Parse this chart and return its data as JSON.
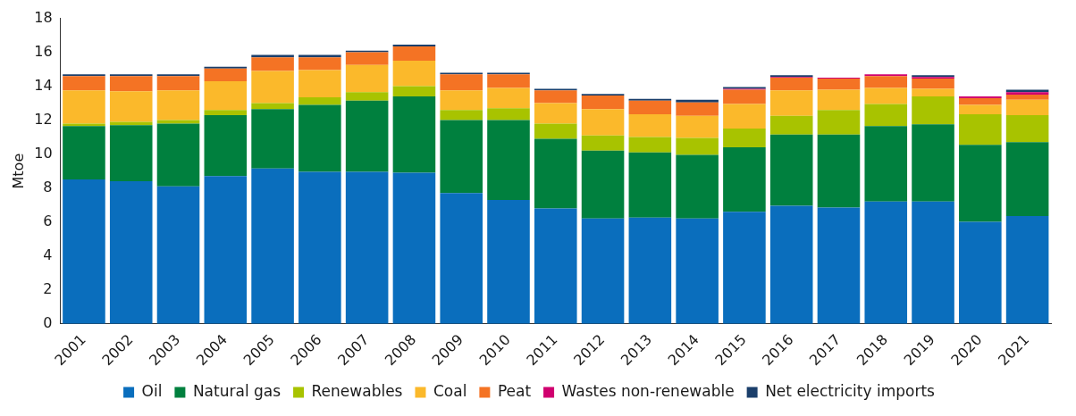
{
  "chart_data": {
    "type": "bar",
    "stacked": true,
    "ylabel": "Mtoe",
    "categories": [
      "2001",
      "2002",
      "2003",
      "2004",
      "2005",
      "2006",
      "2007",
      "2008",
      "2009",
      "2010",
      "2011",
      "2012",
      "2013",
      "2014",
      "2015",
      "2016",
      "2017",
      "2018",
      "2019",
      "2020",
      "2021"
    ],
    "series": [
      {
        "name": "Oil",
        "color": "#0a6ebd",
        "values": [
          8.5,
          8.4,
          8.1,
          8.7,
          9.15,
          8.95,
          8.95,
          8.9,
          7.7,
          7.3,
          6.8,
          6.2,
          6.25,
          6.2,
          6.6,
          6.95,
          6.85,
          7.2,
          7.2,
          6.0,
          6.35
        ]
      },
      {
        "name": "Natural gas",
        "color": "#00803e",
        "values": [
          3.15,
          3.3,
          3.7,
          3.6,
          3.5,
          3.95,
          4.2,
          4.5,
          4.3,
          4.7,
          4.1,
          4.0,
          3.85,
          3.75,
          3.8,
          4.2,
          4.3,
          4.45,
          4.55,
          4.55,
          4.35
        ]
      },
      {
        "name": "Renewables",
        "color": "#a8c300",
        "values": [
          0.15,
          0.2,
          0.2,
          0.3,
          0.35,
          0.45,
          0.5,
          0.6,
          0.6,
          0.7,
          0.9,
          0.9,
          0.9,
          1.0,
          1.1,
          1.1,
          1.45,
          1.3,
          1.65,
          1.8,
          1.6
        ]
      },
      {
        "name": "Coal",
        "color": "#fbb92b",
        "values": [
          1.95,
          1.8,
          1.75,
          1.7,
          1.9,
          1.6,
          1.6,
          1.5,
          1.15,
          1.2,
          1.2,
          1.55,
          1.35,
          1.3,
          1.45,
          1.5,
          1.2,
          0.95,
          0.45,
          0.55,
          0.9
        ]
      },
      {
        "name": "Peat",
        "color": "#f47324",
        "values": [
          0.85,
          0.9,
          0.85,
          0.75,
          0.8,
          0.75,
          0.75,
          0.85,
          0.95,
          0.8,
          0.75,
          0.8,
          0.8,
          0.8,
          0.85,
          0.75,
          0.65,
          0.7,
          0.6,
          0.4,
          0.3
        ]
      },
      {
        "name": "Wastes non-renewable",
        "color": "#d0006f",
        "values": [
          0,
          0,
          0,
          0,
          0,
          0,
          0,
          0,
          0,
          0,
          0,
          0,
          0,
          0,
          0.05,
          0.05,
          0.05,
          0.1,
          0.1,
          0.1,
          0.15
        ]
      },
      {
        "name": "Net electricity imports",
        "color": "#1b3f6b",
        "values": [
          0.1,
          0.1,
          0.1,
          0.1,
          0.15,
          0.15,
          0.1,
          0.1,
          0.1,
          0.1,
          0.1,
          0.1,
          0.1,
          0.15,
          0.1,
          0.1,
          0,
          0,
          0.1,
          0,
          0.15
        ]
      }
    ],
    "ylim": [
      0,
      18
    ],
    "yticks": [
      0,
      2,
      4,
      6,
      8,
      10,
      12,
      14,
      16,
      18
    ],
    "grid": false,
    "legend": "bottom"
  }
}
